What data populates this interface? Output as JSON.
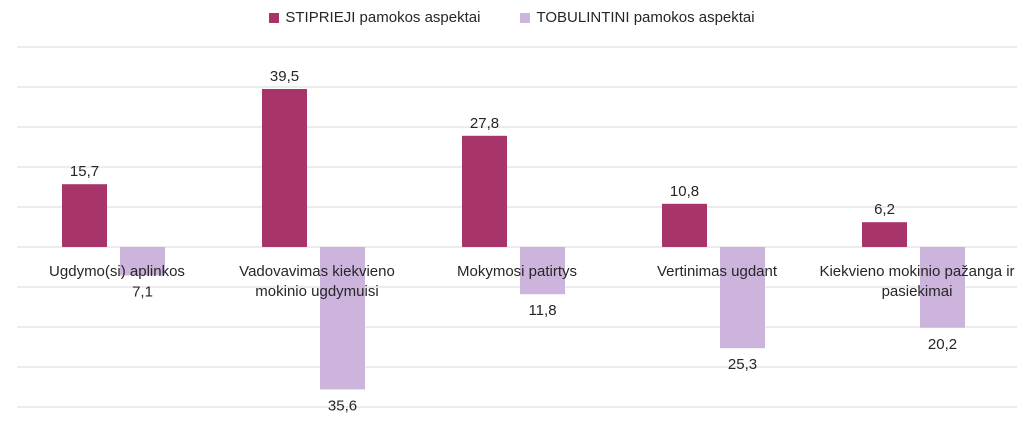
{
  "chart_data": {
    "type": "bar",
    "title": "",
    "xlabel": "",
    "ylabel": "",
    "ylim": [
      -40,
      50
    ],
    "grid": true,
    "legend_position": "top",
    "categories": [
      [
        "Ugdymo(si) aplinkos"
      ],
      [
        "Vadovavimas kiekvieno",
        "mokinio ugdymuisi"
      ],
      [
        "Mokymosi patirtys"
      ],
      [
        "Vertinimas ugdant"
      ],
      [
        "Kiekvieno mokinio pažanga ir",
        "pasiekimai"
      ]
    ],
    "series": [
      {
        "name": "STIPRIEJI pamokos aspektai",
        "color": "#a8356a",
        "values": [
          15.7,
          39.5,
          27.8,
          10.8,
          6.2
        ],
        "labels": [
          "15,7",
          "39,5",
          "27,8",
          "10,8",
          "6,2"
        ]
      },
      {
        "name": "TOBULINTINI pamokos aspektai",
        "color": "#cdb4dc",
        "values": [
          -7.1,
          -35.6,
          -11.8,
          -25.3,
          -20.2
        ],
        "labels": [
          "7,1",
          "35,6",
          "11,8",
          "25,3",
          "20,2"
        ]
      }
    ]
  }
}
